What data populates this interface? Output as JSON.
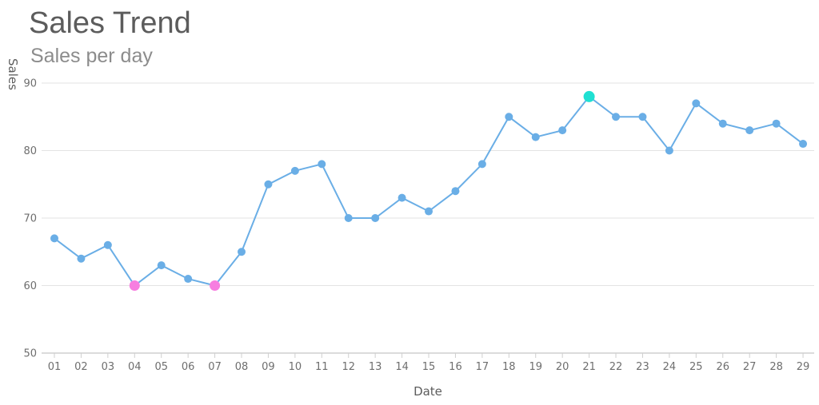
{
  "chart_data": {
    "type": "line",
    "title": "Sales Trend",
    "subtitle": "Sales per day",
    "xlabel": "Date",
    "ylabel": "Sales",
    "categories": [
      "01",
      "02",
      "03",
      "04",
      "05",
      "06",
      "07",
      "08",
      "09",
      "10",
      "11",
      "12",
      "13",
      "14",
      "15",
      "16",
      "17",
      "18",
      "19",
      "20",
      "21",
      "22",
      "23",
      "24",
      "25",
      "26",
      "27",
      "28",
      "29"
    ],
    "series": [
      {
        "values": [
          67,
          64,
          66,
          60,
          63,
          61,
          60,
          65,
          75,
          77,
          78,
          70,
          70,
          73,
          71,
          74,
          78,
          85,
          82,
          83,
          88,
          85,
          85,
          80,
          87,
          84,
          83,
          84,
          81
        ]
      }
    ],
    "ylim": [
      50,
      90
    ],
    "yticks": [
      50,
      60,
      70,
      80,
      90
    ],
    "grid": true,
    "legend": "none",
    "highlights": {
      "max_index": [
        20
      ],
      "min_index": [
        3,
        6
      ]
    },
    "colors": {
      "line": "#6aaee6",
      "point": "#6aaee6",
      "max_point": "#1fe0d2",
      "min_point": "#f77ee0",
      "grid": "#e3e3e3",
      "axis": "#cfcfcf"
    }
  }
}
